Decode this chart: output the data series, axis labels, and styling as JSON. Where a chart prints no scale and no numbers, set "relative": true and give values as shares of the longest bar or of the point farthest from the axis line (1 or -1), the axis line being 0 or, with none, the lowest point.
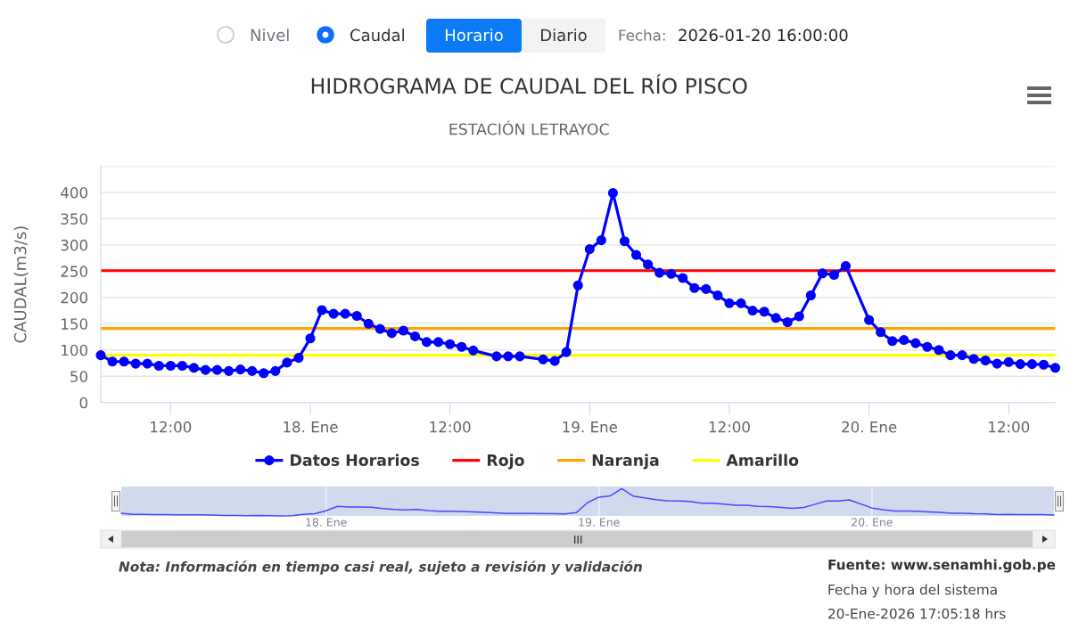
{
  "chart_data": [
    {
      "type": "line",
      "title": "HIDROGRAMA DE CAUDAL DEL RÍO PISCO",
      "subtitle": "ESTACIÓN LETRAYOC",
      "ylabel": "CAUDAL(m3/s)",
      "x": [
        "2026-01-17T06:00",
        "2026-01-17T07:00",
        "2026-01-17T08:00",
        "2026-01-17T09:00",
        "2026-01-17T10:00",
        "2026-01-17T11:00",
        "2026-01-17T12:00",
        "2026-01-17T13:00",
        "2026-01-17T14:00",
        "2026-01-17T15:00",
        "2026-01-17T16:00",
        "2026-01-17T17:00",
        "2026-01-17T18:00",
        "2026-01-17T19:00",
        "2026-01-17T20:00",
        "2026-01-17T21:00",
        "2026-01-17T22:00",
        "2026-01-17T23:00",
        "2026-01-18T00:00",
        "2026-01-18T01:00",
        "2026-01-18T02:00",
        "2026-01-18T03:00",
        "2026-01-18T04:00",
        "2026-01-18T05:00",
        "2026-01-18T06:00",
        "2026-01-18T07:00",
        "2026-01-18T08:00",
        "2026-01-18T09:00",
        "2026-01-18T10:00",
        "2026-01-18T11:00",
        "2026-01-18T12:00",
        "2026-01-18T13:00",
        "2026-01-18T14:00",
        "2026-01-18T16:00",
        "2026-01-18T17:00",
        "2026-01-18T18:00",
        "2026-01-18T20:00",
        "2026-01-18T21:00",
        "2026-01-18T22:00",
        "2026-01-18T23:00",
        "2026-01-19T00:00",
        "2026-01-19T01:00",
        "2026-01-19T02:00",
        "2026-01-19T03:00",
        "2026-01-19T04:00",
        "2026-01-19T05:00",
        "2026-01-19T06:00",
        "2026-01-19T07:00",
        "2026-01-19T08:00",
        "2026-01-19T09:00",
        "2026-01-19T10:00",
        "2026-01-19T11:00",
        "2026-01-19T12:00",
        "2026-01-19T13:00",
        "2026-01-19T14:00",
        "2026-01-19T15:00",
        "2026-01-19T16:00",
        "2026-01-19T17:00",
        "2026-01-19T18:00",
        "2026-01-19T19:00",
        "2026-01-19T20:00",
        "2026-01-19T21:00",
        "2026-01-19T22:00",
        "2026-01-20T00:00",
        "2026-01-20T01:00",
        "2026-01-20T02:00",
        "2026-01-20T03:00",
        "2026-01-20T04:00",
        "2026-01-20T05:00",
        "2026-01-20T06:00",
        "2026-01-20T07:00",
        "2026-01-20T08:00",
        "2026-01-20T09:00",
        "2026-01-20T10:00",
        "2026-01-20T11:00",
        "2026-01-20T12:00",
        "2026-01-20T13:00",
        "2026-01-20T14:00",
        "2026-01-20T15:00",
        "2026-01-20T16:00"
      ],
      "series": [
        {
          "name": "Datos Horarios",
          "color": "#0000ff",
          "values": [
            90,
            78,
            78,
            74,
            74,
            70,
            70,
            70,
            66,
            62,
            62,
            60,
            63,
            60,
            56,
            60,
            76,
            85,
            122,
            176,
            169,
            169,
            165,
            150,
            140,
            132,
            137,
            126,
            115,
            115,
            111,
            106,
            99,
            88,
            88,
            88,
            82,
            79,
            96,
            223,
            292,
            309,
            399,
            307,
            281,
            263,
            247,
            245,
            237,
            218,
            216,
            204,
            189,
            189,
            175,
            173,
            161,
            153,
            164,
            204,
            246,
            243,
            260,
            157,
            134,
            117,
            119,
            113,
            106,
            100,
            90,
            90,
            83,
            80,
            74,
            77,
            73,
            73,
            72,
            66
          ]
        }
      ],
      "xlim": [
        "2026-01-17T06:00",
        "2026-01-20T16:00"
      ],
      "xticks": [
        {
          "value": "2026-01-17T12:00",
          "label": "12:00"
        },
        {
          "value": "2026-01-18",
          "label": "18. Ene"
        },
        {
          "value": "2026-01-18T12:00",
          "label": "12:00"
        },
        {
          "value": "2026-01-19",
          "label": "19. Ene"
        },
        {
          "value": "2026-01-19T12:00",
          "label": "12:00"
        },
        {
          "value": "2026-01-20",
          "label": "20. Ene"
        },
        {
          "value": "2026-01-20T12:00",
          "label": "12:00"
        }
      ],
      "ylim": [
        0,
        450
      ],
      "yticks": [
        0,
        50,
        100,
        150,
        200,
        250,
        300,
        350,
        400,
        {
          "value": 450,
          "label": null
        }
      ],
      "ref_lines": [
        {
          "axis": "y",
          "value": 251,
          "label": "Rojo",
          "color": "#ff0000"
        },
        {
          "axis": "y",
          "value": 141,
          "label": "Naranja",
          "color": "#ffa500"
        },
        {
          "axis": "y",
          "value": 90,
          "label": "Amarillo",
          "color": "#ffff00"
        }
      ],
      "grid": "y",
      "legend": "bottom",
      "marker": "circle",
      "line_style": "solid",
      "annotations": [
        "Nivel",
        "Caudal",
        "Horario",
        "Diario",
        "Fecha:",
        "2026-01-20 16:00:00",
        "Nota: Información en tiempo casi real, sujeto a revisión y validación",
        "Fuente: www.senamhi.gob.pe",
        "Fecha y hora del sistema",
        "20-Ene-2026 17:05:18 hrs"
      ]
    },
    {
      "type": "line",
      "relative": true,
      "x": [
        "2026-01-17T06:00",
        "2026-01-17T07:00",
        "2026-01-17T08:00",
        "2026-01-17T09:00",
        "2026-01-17T10:00",
        "2026-01-17T11:00",
        "2026-01-17T12:00",
        "2026-01-17T13:00",
        "2026-01-17T14:00",
        "2026-01-17T15:00",
        "2026-01-17T16:00",
        "2026-01-17T17:00",
        "2026-01-17T18:00",
        "2026-01-17T19:00",
        "2026-01-17T20:00",
        "2026-01-17T21:00",
        "2026-01-17T22:00",
        "2026-01-17T23:00",
        "2026-01-18T00:00",
        "2026-01-18T01:00",
        "2026-01-18T02:00",
        "2026-01-18T03:00",
        "2026-01-18T04:00",
        "2026-01-18T05:00",
        "2026-01-18T06:00",
        "2026-01-18T07:00",
        "2026-01-18T08:00",
        "2026-01-18T09:00",
        "2026-01-18T10:00",
        "2026-01-18T11:00",
        "2026-01-18T12:00",
        "2026-01-18T13:00",
        "2026-01-18T14:00",
        "2026-01-18T16:00",
        "2026-01-18T17:00",
        "2026-01-18T18:00",
        "2026-01-18T20:00",
        "2026-01-18T21:00",
        "2026-01-18T22:00",
        "2026-01-18T23:00",
        "2026-01-19T00:00",
        "2026-01-19T01:00",
        "2026-01-19T02:00",
        "2026-01-19T03:00",
        "2026-01-19T04:00",
        "2026-01-19T05:00",
        "2026-01-19T06:00",
        "2026-01-19T07:00",
        "2026-01-19T08:00",
        "2026-01-19T09:00",
        "2026-01-19T10:00",
        "2026-01-19T11:00",
        "2026-01-19T12:00",
        "2026-01-19T13:00",
        "2026-01-19T14:00",
        "2026-01-19T15:00",
        "2026-01-19T16:00",
        "2026-01-19T17:00",
        "2026-01-19T18:00",
        "2026-01-19T19:00",
        "2026-01-19T20:00",
        "2026-01-19T21:00",
        "2026-01-19T22:00",
        "2026-01-20T00:00",
        "2026-01-20T01:00",
        "2026-01-20T02:00",
        "2026-01-20T03:00",
        "2026-01-20T04:00",
        "2026-01-20T05:00",
        "2026-01-20T06:00",
        "2026-01-20T07:00",
        "2026-01-20T08:00",
        "2026-01-20T09:00",
        "2026-01-20T10:00",
        "2026-01-20T11:00",
        "2026-01-20T12:00",
        "2026-01-20T13:00",
        "2026-01-20T14:00",
        "2026-01-20T15:00",
        "2026-01-20T16:00"
      ],
      "series": [
        {
          "color": "#4747ff",
          "values": [
            0.1,
            0.06,
            0.06,
            0.05,
            0.05,
            0.04,
            0.04,
            0.04,
            0.03,
            0.02,
            0.02,
            0.01,
            0.02,
            0.01,
            0,
            0.01,
            0.06,
            0.08,
            0.19,
            0.35,
            0.33,
            0.33,
            0.32,
            0.27,
            0.24,
            0.22,
            0.24,
            0.2,
            0.17,
            0.17,
            0.16,
            0.15,
            0.13,
            0.09,
            0.09,
            0.09,
            0.08,
            0.07,
            0.12,
            0.49,
            0.69,
            0.74,
            1,
            0.73,
            0.66,
            0.6,
            0.56,
            0.55,
            0.53,
            0.47,
            0.47,
            0.43,
            0.39,
            0.39,
            0.35,
            0.34,
            0.31,
            0.28,
            0.31,
            0.43,
            0.55,
            0.55,
            0.59,
            0.29,
            0.23,
            0.18,
            0.18,
            0.17,
            0.15,
            0.13,
            0.1,
            0.1,
            0.08,
            0.07,
            0.05,
            0.06,
            0.05,
            0.05,
            0.05,
            0.03
          ]
        }
      ],
      "xlim": [
        "2026-01-17T06:00",
        "2026-01-20T16:00"
      ],
      "xticks": [
        {
          "value": "2026-01-18",
          "label": "18. Ene"
        },
        {
          "value": "2026-01-19",
          "label": "19. Ene"
        },
        {
          "value": "2026-01-20",
          "label": "20. Ene"
        }
      ],
      "grid": "x"
    }
  ]
}
